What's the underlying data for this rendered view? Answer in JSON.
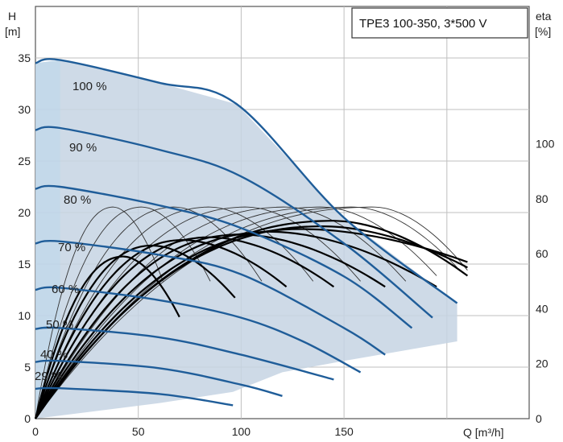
{
  "chart_data": {
    "type": "line",
    "title": "TPE3 100-350, 3*500 V",
    "y_label_left": "H",
    "y_unit_left": "[m]",
    "y_label_right": "eta",
    "y_unit_right": "[%]",
    "x_label": "Q [m³/h]",
    "xlim": [
      0,
      240
    ],
    "ylim_left": [
      0,
      40
    ],
    "ylim_right": [
      0,
      150
    ],
    "x_ticks": [
      "0",
      "50",
      "100",
      "150"
    ],
    "y_ticks_left": [
      "0",
      "5",
      "10",
      "15",
      "20",
      "25",
      "30",
      "35"
    ],
    "y_ticks_right": [
      "0",
      "20",
      "40",
      "60",
      "80",
      "100"
    ],
    "grid": true,
    "colors": {
      "head_curve": "#1f5d99",
      "envelope_fill": "#c6d4e3",
      "envelope_edge": "#b9d7ee",
      "efficiency_bold": "#000000",
      "efficiency_thin": "#333333",
      "grid": "#bfbfbf"
    },
    "head_series": [
      {
        "name": "100 %",
        "x": [
          0,
          12,
          60,
          98,
          150,
          205
        ],
        "y": [
          34.5,
          34.8,
          32.6,
          30.5,
          19.5,
          11.2
        ]
      },
      {
        "name": "90 %",
        "x": [
          0,
          12,
          60,
          100,
          150,
          193
        ],
        "y": [
          28.0,
          28.2,
          26.1,
          23.5,
          17.0,
          9.8
        ]
      },
      {
        "name": "80 %",
        "x": [
          0,
          12,
          60,
          100,
          150,
          183
        ],
        "y": [
          22.3,
          22.5,
          20.7,
          18.5,
          13.8,
          8.8
        ]
      },
      {
        "name": "70 %",
        "x": [
          0,
          12,
          60,
          100,
          150,
          170
        ],
        "y": [
          17.0,
          17.2,
          15.9,
          14.0,
          8.8,
          6.2
        ]
      },
      {
        "name": "60 %",
        "x": [
          0,
          12,
          60,
          100,
          130,
          158
        ],
        "y": [
          12.5,
          12.7,
          11.5,
          9.8,
          7.5,
          4.5
        ]
      },
      {
        "name": "50 %",
        "x": [
          0,
          12,
          60,
          100,
          145
        ],
        "y": [
          8.7,
          8.8,
          7.9,
          6.2,
          3.8
        ]
      },
      {
        "name": "40 %",
        "x": [
          0,
          12,
          60,
          100,
          120
        ],
        "y": [
          5.5,
          5.6,
          4.9,
          3.3,
          2.2
        ]
      },
      {
        "name": "29 %",
        "x": [
          0,
          12,
          60,
          96
        ],
        "y": [
          2.9,
          2.95,
          2.4,
          1.3
        ]
      }
    ],
    "efficiency_bold": [
      {
        "peak_x": 145,
        "peak_eta": 72,
        "end_x": 210,
        "end_eta": 52
      },
      {
        "peak_x": 140,
        "peak_eta": 70,
        "end_x": 210,
        "end_eta": 55
      },
      {
        "peak_x": 130,
        "peak_eta": 69,
        "end_x": 210,
        "end_eta": 57
      },
      {
        "peak_x": 115,
        "peak_eta": 68,
        "end_x": 195,
        "end_eta": 48
      },
      {
        "peak_x": 100,
        "peak_eta": 67,
        "end_x": 170,
        "end_eta": 48
      },
      {
        "peak_x": 85,
        "peak_eta": 66,
        "end_x": 145,
        "end_eta": 48
      },
      {
        "peak_x": 72,
        "peak_eta": 65,
        "end_x": 122,
        "end_eta": 48
      },
      {
        "peak_x": 57,
        "peak_eta": 63,
        "end_x": 97,
        "end_eta": 44
      },
      {
        "peak_x": 43,
        "peak_eta": 59,
        "end_x": 70,
        "end_eta": 37
      }
    ],
    "efficiency_thin": [
      {
        "peak_x": 165,
        "peak_eta": 77,
        "end_x": 210,
        "end_eta": 54
      },
      {
        "peak_x": 155,
        "peak_eta": 77,
        "end_x": 205,
        "end_eta": 55
      },
      {
        "peak_x": 140,
        "peak_eta": 77,
        "end_x": 195,
        "end_eta": 52
      },
      {
        "peak_x": 122,
        "peak_eta": 77,
        "end_x": 180,
        "end_eta": 50
      },
      {
        "peak_x": 103,
        "peak_eta": 77,
        "end_x": 158,
        "end_eta": 50
      },
      {
        "peak_x": 85,
        "peak_eta": 77,
        "end_x": 135,
        "end_eta": 50
      },
      {
        "peak_x": 68,
        "peak_eta": 77,
        "end_x": 110,
        "end_eta": 50
      },
      {
        "peak_x": 52,
        "peak_eta": 77,
        "end_x": 85,
        "end_eta": 50
      },
      {
        "peak_x": 38,
        "peak_eta": 77,
        "end_x": 62,
        "end_eta": 50
      }
    ],
    "envelope": {
      "x": [
        0,
        12,
        60,
        98,
        150,
        205,
        205,
        150,
        120,
        96,
        60,
        0
      ],
      "y": [
        34.5,
        34.8,
        32.6,
        30.5,
        19.5,
        11.2,
        7.5,
        5.6,
        4.5,
        2.6,
        1.5,
        0.0
      ]
    }
  }
}
